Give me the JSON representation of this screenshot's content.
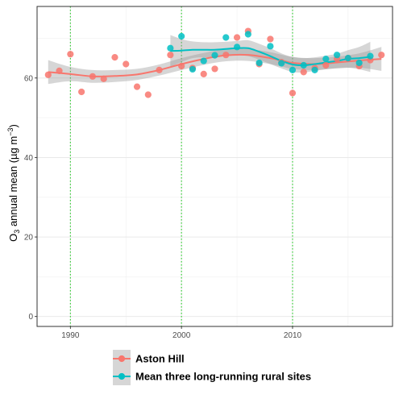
{
  "chart_data": {
    "type": "scatter",
    "title": "",
    "xlabel": "",
    "ylabel": {
      "base": "O",
      "sub": "3",
      "mid": " annual mean (µg m",
      "sup": "−3",
      "end": ")"
    },
    "xlim": [
      1987,
      2019
    ],
    "ylim": [
      -2.5,
      78
    ],
    "x_ticks": [
      1990,
      2000,
      2010
    ],
    "y_ticks": [
      0,
      20,
      40,
      60
    ],
    "grid": true,
    "vertical_reference_lines": [
      1990,
      2000,
      2010
    ],
    "reference_line_color": "#22cc22",
    "legend_position": "bottom",
    "series": [
      {
        "name": "Aston Hill",
        "color": "#F8766D",
        "points": [
          [
            1988,
            60.8
          ],
          [
            1989,
            61.8
          ],
          [
            1990,
            66.0
          ],
          [
            1991,
            56.5
          ],
          [
            1992,
            60.4
          ],
          [
            1993,
            59.8
          ],
          [
            1994,
            65.2
          ],
          [
            1995,
            63.5
          ],
          [
            1996,
            57.8
          ],
          [
            1997,
            55.8
          ],
          [
            1998,
            62.0
          ],
          [
            1999,
            65.8
          ],
          [
            2000,
            63.0
          ],
          [
            2001,
            62.5
          ],
          [
            2002,
            61.0
          ],
          [
            2003,
            62.3
          ],
          [
            2004,
            65.8
          ],
          [
            2005,
            70.2
          ],
          [
            2006,
            71.8
          ],
          [
            2007,
            63.5
          ],
          [
            2008,
            69.8
          ],
          [
            2009,
            64.0
          ],
          [
            2010,
            56.2
          ],
          [
            2011,
            61.5
          ],
          [
            2012,
            62.5
          ],
          [
            2013,
            63.2
          ],
          [
            2014,
            64.8
          ],
          [
            2015,
            65.0
          ],
          [
            2016,
            63.0
          ],
          [
            2017,
            64.5
          ],
          [
            2018,
            65.8
          ]
        ],
        "smooth": [
          [
            1988,
            61.5
          ],
          [
            1990,
            61.0
          ],
          [
            1992,
            60.4
          ],
          [
            1994,
            60.5
          ],
          [
            1996,
            60.9
          ],
          [
            1998,
            62.0
          ],
          [
            2000,
            63.5
          ],
          [
            2002,
            64.8
          ],
          [
            2004,
            65.7
          ],
          [
            2006,
            65.8
          ],
          [
            2008,
            65.0
          ],
          [
            2009,
            64.4
          ],
          [
            2010,
            63.8
          ],
          [
            2012,
            63.5
          ],
          [
            2014,
            63.9
          ],
          [
            2016,
            64.4
          ],
          [
            2018,
            64.8
          ]
        ],
        "band": [
          [
            1988,
            58.5,
            64.5
          ],
          [
            1990,
            59.2,
            62.8
          ],
          [
            1992,
            58.8,
            62.0
          ],
          [
            1994,
            59.0,
            62.0
          ],
          [
            1996,
            59.5,
            62.3
          ],
          [
            1998,
            60.6,
            63.4
          ],
          [
            2000,
            62.0,
            65.0
          ],
          [
            2002,
            63.3,
            66.3
          ],
          [
            2004,
            64.2,
            67.2
          ],
          [
            2006,
            64.3,
            67.3
          ],
          [
            2008,
            63.5,
            66.5
          ],
          [
            2010,
            62.3,
            65.3
          ],
          [
            2012,
            62.0,
            65.0
          ],
          [
            2014,
            62.4,
            65.4
          ],
          [
            2016,
            62.6,
            66.2
          ],
          [
            2018,
            61.8,
            67.8
          ]
        ]
      },
      {
        "name": "Mean three long-running rural sites",
        "color": "#00BFC4",
        "points": [
          [
            1999,
            67.5
          ],
          [
            2000,
            70.5
          ],
          [
            2001,
            62.2
          ],
          [
            2002,
            64.3
          ],
          [
            2003,
            65.7
          ],
          [
            2004,
            70.2
          ],
          [
            2005,
            67.8
          ],
          [
            2006,
            71.0
          ],
          [
            2007,
            63.8
          ],
          [
            2008,
            68.0
          ],
          [
            2009,
            63.7
          ],
          [
            2010,
            62.0
          ],
          [
            2011,
            63.2
          ],
          [
            2012,
            62.0
          ],
          [
            2013,
            64.8
          ],
          [
            2014,
            65.8
          ],
          [
            2015,
            65.0
          ],
          [
            2016,
            63.8
          ],
          [
            2017,
            65.5
          ]
        ],
        "smooth": [
          [
            1999,
            66.8
          ],
          [
            2000,
            66.9
          ],
          [
            2001,
            67.1
          ],
          [
            2002,
            67.1
          ],
          [
            2003,
            67.1
          ],
          [
            2004,
            67.3
          ],
          [
            2005,
            67.5
          ],
          [
            2006,
            67.5
          ],
          [
            2007,
            66.6
          ],
          [
            2008,
            65.5
          ],
          [
            2009,
            64.3
          ],
          [
            2010,
            63.4
          ],
          [
            2011,
            63.2
          ],
          [
            2012,
            63.5
          ],
          [
            2013,
            63.9
          ],
          [
            2014,
            64.3
          ],
          [
            2015,
            64.8
          ],
          [
            2016,
            65.0
          ],
          [
            2017,
            65.3
          ]
        ],
        "band": [
          [
            1999,
            62.8,
            70.8
          ],
          [
            2000,
            64.0,
            69.8
          ],
          [
            2001,
            65.0,
            69.2
          ],
          [
            2002,
            65.2,
            69.0
          ],
          [
            2003,
            65.2,
            69.0
          ],
          [
            2004,
            65.5,
            69.1
          ],
          [
            2005,
            65.7,
            69.3
          ],
          [
            2006,
            65.5,
            69.5
          ],
          [
            2007,
            64.6,
            68.6
          ],
          [
            2008,
            63.5,
            67.5
          ],
          [
            2009,
            62.4,
            66.2
          ],
          [
            2010,
            61.5,
            65.3
          ],
          [
            2011,
            61.4,
            65.0
          ],
          [
            2012,
            61.8,
            65.2
          ],
          [
            2013,
            62.2,
            65.6
          ],
          [
            2014,
            62.5,
            66.1
          ],
          [
            2015,
            62.6,
            67.0
          ],
          [
            2016,
            62.2,
            67.8
          ],
          [
            2017,
            61.5,
            69.1
          ]
        ]
      }
    ]
  }
}
